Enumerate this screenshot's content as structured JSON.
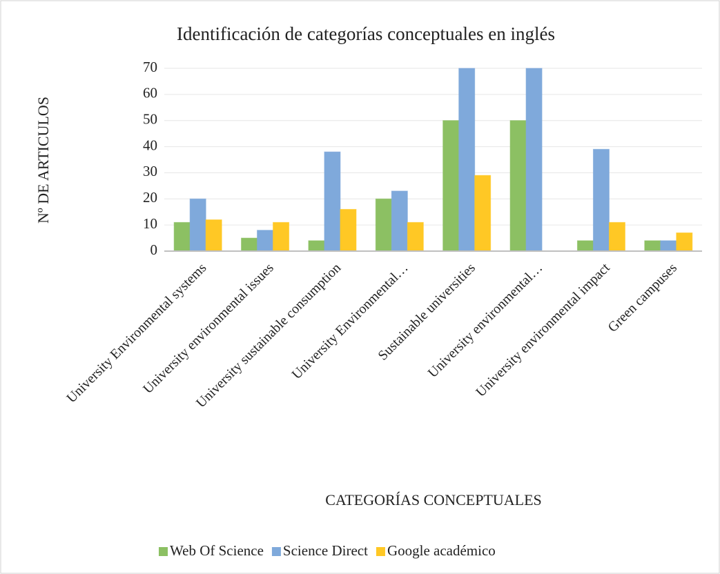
{
  "chart_data": {
    "type": "bar",
    "title": "Identificación de categorías conceptuales en inglés",
    "x_label": "CATEGORÍAS CONCEPTUALES",
    "y_label": "Nº DE ARTICULOS",
    "categories": [
      "University Environmental systems",
      "University environmental issues",
      "University sustainable consumption",
      "University Environmental…",
      "Sustainable universities",
      "University environmental…",
      "University environmental impact",
      "Green campuses"
    ],
    "series": [
      {
        "name": "Web Of Science",
        "color": "#8cc063",
        "values": [
          11,
          5,
          4,
          20,
          50,
          50,
          4,
          4
        ]
      },
      {
        "name": "Science Direct",
        "color": "#7fa9db",
        "values": [
          20,
          8,
          38,
          23,
          70,
          70,
          39,
          4
        ]
      },
      {
        "name": "Google académico",
        "color": "#ffc825",
        "values": [
          12,
          11,
          16,
          11,
          29,
          0,
          11,
          7
        ]
      }
    ],
    "ylim": [
      0,
      70
    ],
    "yticks": [
      0,
      10,
      20,
      30,
      40,
      50,
      60,
      70
    ],
    "grid": true,
    "legend": "bottom"
  }
}
